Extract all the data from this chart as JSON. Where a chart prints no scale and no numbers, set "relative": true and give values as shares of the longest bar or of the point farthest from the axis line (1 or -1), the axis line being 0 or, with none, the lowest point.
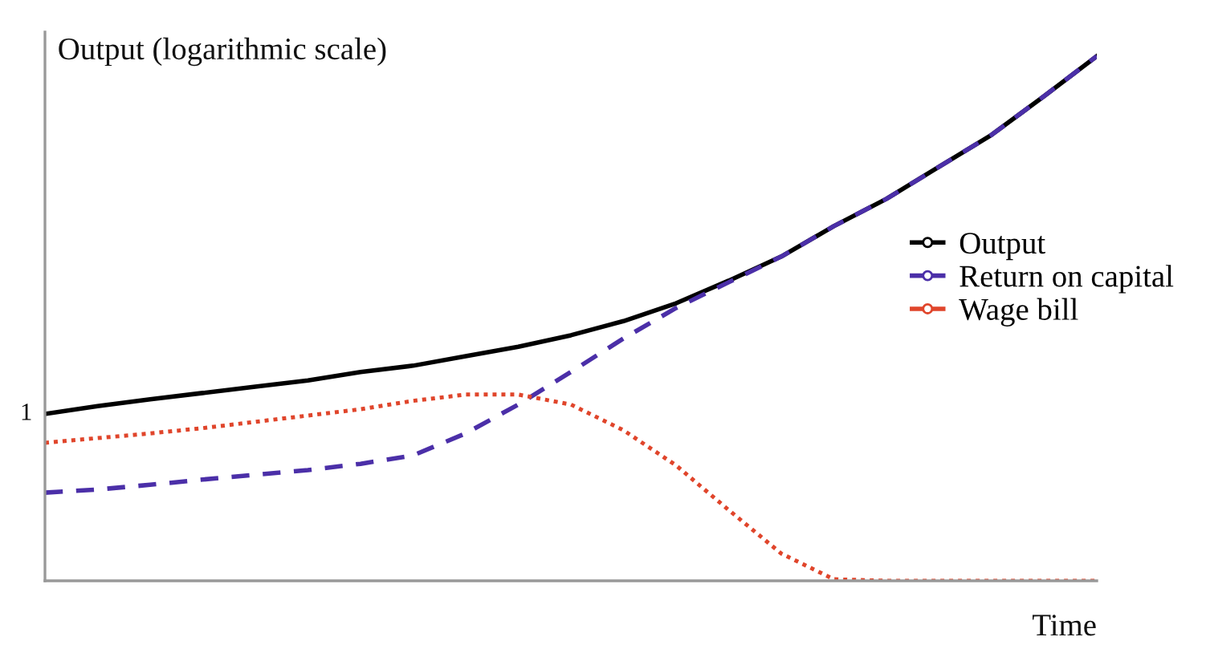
{
  "chart_data": {
    "type": "line",
    "relative": true,
    "ylabel": "Output (logarithmic scale)",
    "xlabel": "Time",
    "categories": [
      null,
      null,
      null,
      null,
      null,
      null,
      null,
      null,
      null,
      null,
      null,
      null,
      null,
      null,
      null,
      null,
      null,
      null,
      null,
      null,
      null
    ],
    "series": [
      {
        "name": "Output",
        "color": "#000000",
        "line_style": "solid",
        "values": [
          0.318,
          0.333,
          0.346,
          0.358,
          0.37,
          0.382,
          0.398,
          0.41,
          0.428,
          0.446,
          0.468,
          0.495,
          0.529,
          0.572,
          0.618,
          0.676,
          0.728,
          0.789,
          0.85,
          0.924,
          1
        ]
      },
      {
        "name": "Return on capital",
        "color": "#4b2fa8",
        "line_style": "dashed",
        "values": [
          0.168,
          0.174,
          0.183,
          0.193,
          0.202,
          0.211,
          0.223,
          0.239,
          0.281,
          0.336,
          0.398,
          0.462,
          0.52,
          0.569,
          0.618,
          0.676,
          0.728,
          0.789,
          0.85,
          0.924,
          1
        ]
      },
      {
        "name": "Wage bill",
        "color": "#e0452b",
        "line_style": "dotted",
        "values": [
          0.263,
          0.272,
          0.281,
          0.291,
          0.303,
          0.315,
          0.327,
          0.343,
          0.355,
          0.355,
          0.336,
          0.287,
          0.22,
          0.135,
          0.052,
          0.003,
          0,
          0,
          0,
          0,
          0
        ]
      }
    ],
    "annotations": [
      "1"
    ],
    "legend": "right",
    "grid": false
  }
}
